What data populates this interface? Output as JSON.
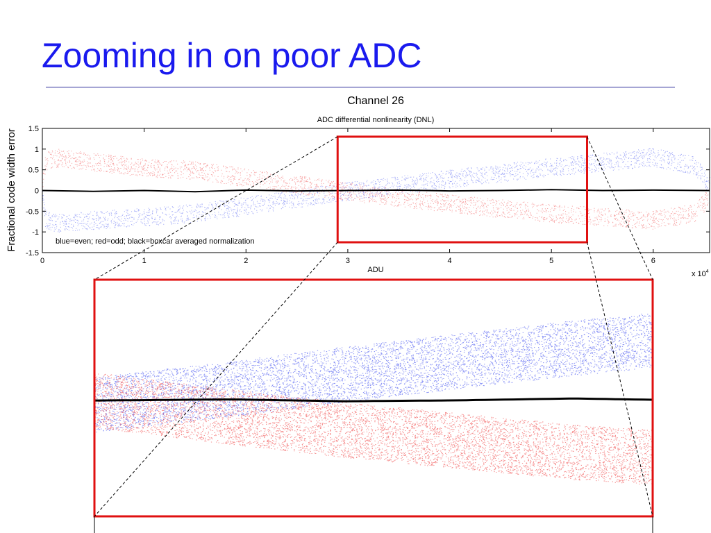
{
  "slide": {
    "title": "Zooming in on poor ADC",
    "title_color": "#1a1aee",
    "rule_color": "#2a2a9a"
  },
  "colors": {
    "even": "#3344ee",
    "odd": "#ee3333",
    "average": "#000000",
    "highlight": "#e01010"
  },
  "chart_data": {
    "type": "scatter",
    "super_title": "Channel 26",
    "title": "ADC differential nonlinearity (DNL)",
    "xlabel": "ADU",
    "ylabel": "Fractional code width error",
    "x_multiplier": "x 10",
    "x_multiplier_exp": "4",
    "xlim": [
      0,
      65536
    ],
    "ylim": [
      -1.5,
      1.5
    ],
    "x_ticks": [
      0,
      1,
      2,
      3,
      4,
      5,
      6
    ],
    "y_ticks": [
      1.5,
      1,
      0.5,
      0,
      -0.5,
      -1,
      -1.5
    ],
    "grid": false,
    "legend_text": "blue=even; red=odd; black=boxcar averaged normalization",
    "legend_position": "bottom-left",
    "series": [
      {
        "key": "even",
        "x": [
          0,
          300,
          1500,
          5000,
          10000,
          15000,
          20000,
          25000,
          29000,
          35000,
          40000,
          45000,
          50000,
          55000,
          60000,
          64000,
          65000,
          65536
        ],
        "y": [
          -0.2,
          -0.7,
          -0.8,
          -0.72,
          -0.65,
          -0.55,
          -0.38,
          -0.2,
          -0.05,
          0.12,
          0.28,
          0.42,
          0.56,
          0.68,
          0.8,
          0.6,
          0.3,
          0.1
        ],
        "spread": 0.22
      },
      {
        "key": "odd",
        "x": [
          0,
          300,
          1500,
          5000,
          10000,
          15000,
          20000,
          25000,
          29000,
          35000,
          40000,
          45000,
          50000,
          55000,
          60000,
          64000,
          65000,
          65536
        ],
        "y": [
          0.2,
          0.7,
          0.78,
          0.68,
          0.55,
          0.48,
          0.3,
          0.14,
          0.0,
          -0.18,
          -0.32,
          -0.44,
          -0.56,
          -0.64,
          -0.72,
          -0.55,
          -0.3,
          -0.1
        ],
        "spread": 0.22
      },
      {
        "key": "average",
        "x": [
          0,
          5000,
          10000,
          15000,
          20000,
          25000,
          30000,
          35000,
          40000,
          45000,
          50000,
          55000,
          60000,
          65536
        ],
        "y": [
          0,
          -0.02,
          0.0,
          -0.03,
          0.01,
          -0.01,
          0.0,
          0.01,
          -0.01,
          0.0,
          0.02,
          0.0,
          0.01,
          0.0
        ]
      }
    ],
    "zoom_region": {
      "xlim": [
        29000,
        53500
      ],
      "ylim": [
        -1.25,
        1.3
      ]
    }
  }
}
